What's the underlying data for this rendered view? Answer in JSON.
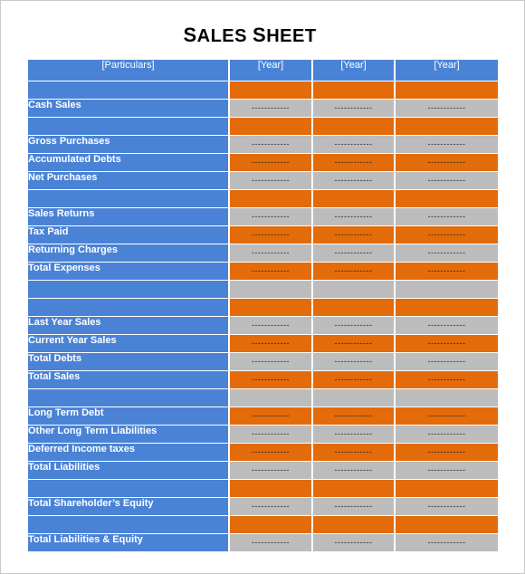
{
  "title": {
    "big": "S",
    "rest": "ALES ",
    "big2": "S",
    "rest2": "HEET"
  },
  "header": {
    "particulars": "[Particulars]",
    "years": [
      "[Year]",
      "[Year]",
      "[Year]"
    ]
  },
  "placeholder": "------------",
  "colors": {
    "blue": "#4a83d6",
    "orange": "#e36b0a",
    "gray": "#bcbcbc"
  },
  "rows": [
    {
      "label": "",
      "tone": "o",
      "vals": false
    },
    {
      "label": "Cash Sales",
      "tone": "g",
      "vals": true
    },
    {
      "label": "",
      "tone": "o",
      "vals": false
    },
    {
      "label": "Gross Purchases",
      "tone": "g",
      "vals": true
    },
    {
      "label": "Accumulated Debts",
      "tone": "o",
      "vals": true
    },
    {
      "label": "Net Purchases",
      "tone": "g",
      "vals": true
    },
    {
      "label": "",
      "tone": "o",
      "vals": false
    },
    {
      "label": "Sales Returns",
      "tone": "g",
      "vals": true
    },
    {
      "label": "Tax Paid",
      "tone": "o",
      "vals": true
    },
    {
      "label": "Returning Charges",
      "tone": "g",
      "vals": true
    },
    {
      "label": "Total Expenses",
      "tone": "o",
      "vals": true
    },
    {
      "label": "",
      "tone": "g",
      "vals": false
    },
    {
      "label": "",
      "tone": "o",
      "vals": false
    },
    {
      "label": "Last Year  Sales",
      "tone": "g",
      "vals": true
    },
    {
      "label": "Current Year Sales",
      "tone": "o",
      "vals": true
    },
    {
      "label": "Total Debts",
      "tone": "g",
      "vals": true
    },
    {
      "label": "Total Sales",
      "tone": "o",
      "vals": true
    },
    {
      "label": "",
      "tone": "g",
      "vals": false
    },
    {
      "label": "Long Term Debt",
      "tone": "o",
      "vals": true
    },
    {
      "label": "Other Long Term Liabilities",
      "tone": "g",
      "vals": true
    },
    {
      "label": "Deferred Income taxes",
      "tone": "o",
      "vals": true
    },
    {
      "label": "Total Liabilities",
      "tone": "g",
      "vals": true
    },
    {
      "label": "",
      "tone": "o",
      "vals": false
    },
    {
      "label": "Total Shareholder’s  Equity",
      "tone": "g",
      "vals": true
    },
    {
      "label": "",
      "tone": "o",
      "vals": false
    },
    {
      "label": "Total Liabilities & Equity",
      "tone": "g",
      "vals": true
    }
  ]
}
